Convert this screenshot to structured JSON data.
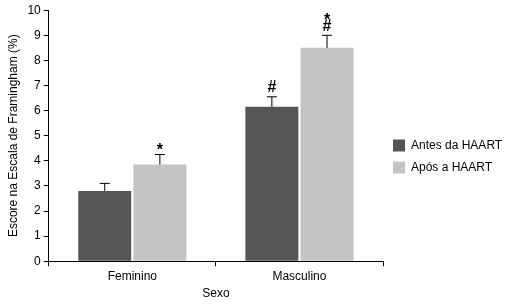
{
  "chart_data": {
    "type": "bar",
    "x_label": "Sexo",
    "y_label": "Escore na Escala de Framingham (%)",
    "categories": [
      "Feminino",
      "Masculino"
    ],
    "series": [
      {
        "name": "Antes da HAART",
        "color": "#555555",
        "values": [
          2.8,
          6.15
        ],
        "errors": [
          0.3,
          0.4
        ],
        "annotations": [
          [],
          [
            "#"
          ]
        ]
      },
      {
        "name": "Após a HAART",
        "color": "#c4c4c4",
        "values": [
          3.85,
          8.5
        ],
        "errors": [
          0.4,
          0.5
        ],
        "annotations": [
          [
            "*"
          ],
          [
            "*",
            "#"
          ]
        ]
      }
    ],
    "ylim": [
      0,
      10
    ],
    "yticks": [
      0,
      1,
      2,
      3,
      4,
      5,
      6,
      7,
      8,
      9,
      10
    ],
    "grid": false,
    "legend": "right"
  }
}
